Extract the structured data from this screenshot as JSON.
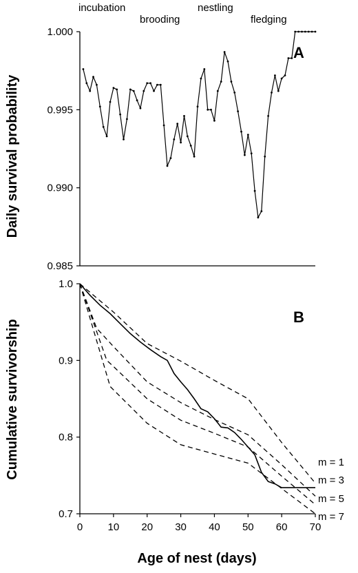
{
  "phases": [
    "incubation",
    "brooding",
    "nestling",
    "fledging"
  ],
  "x_label": "Age of nest (days)",
  "chart_data": [
    {
      "panel": "A",
      "type": "line",
      "ylabel": "Daily survival probability",
      "xlim": [
        0,
        70
      ],
      "ylim": [
        0.985,
        1.0
      ],
      "yticks": [
        "1.000",
        "0.995",
        "0.990",
        "0.985"
      ],
      "ytick_values": [
        1.0,
        0.995,
        0.99,
        0.985
      ],
      "markers": true,
      "series": [
        {
          "x": [
            1,
            2,
            3,
            4,
            5,
            6,
            7,
            8,
            9,
            10,
            11,
            12,
            13,
            14,
            15,
            16,
            17,
            18,
            19,
            20,
            21,
            22,
            23,
            24,
            25,
            26,
            27,
            28,
            29,
            30,
            31,
            32,
            33,
            34,
            35,
            36,
            37,
            38,
            39,
            40,
            41,
            42,
            43,
            44,
            45,
            46,
            47,
            48,
            49,
            50,
            51,
            52,
            53,
            54,
            55,
            56,
            57,
            58,
            59,
            60,
            61,
            62,
            63,
            64,
            65,
            66,
            67,
            68,
            69,
            70
          ],
          "y": [
            0.9976,
            0.9967,
            0.9962,
            0.9971,
            0.9966,
            0.9952,
            0.9939,
            0.9933,
            0.9955,
            0.9964,
            0.9963,
            0.9947,
            0.9931,
            0.9944,
            0.9963,
            0.9962,
            0.9956,
            0.9951,
            0.9962,
            0.9967,
            0.9967,
            0.9962,
            0.9966,
            0.9966,
            0.994,
            0.9914,
            0.9919,
            0.9931,
            0.9941,
            0.9929,
            0.9946,
            0.9933,
            0.9927,
            0.992,
            0.9952,
            0.997,
            0.9976,
            0.995,
            0.995,
            0.9943,
            0.9962,
            0.9968,
            0.9987,
            0.9981,
            0.9968,
            0.9961,
            0.9949,
            0.9936,
            0.9921,
            0.9934,
            0.9922,
            0.9898,
            0.9881,
            0.9885,
            0.992,
            0.9946,
            0.9961,
            0.9972,
            0.9962,
            0.997,
            0.9972,
            0.9983,
            0.9983,
            1.0,
            1.0,
            1.0,
            1.0,
            1.0,
            1.0,
            1.0
          ]
        }
      ]
    },
    {
      "panel": "B",
      "type": "line",
      "ylabel": "Cumulative survivorship",
      "xlim": [
        0,
        70
      ],
      "ylim": [
        0.7,
        1.0
      ],
      "xticks": [
        "0",
        "10",
        "20",
        "30",
        "40",
        "50",
        "60",
        "70"
      ],
      "xtick_values": [
        0,
        10,
        20,
        30,
        40,
        50,
        60,
        70
      ],
      "yticks": [
        "1.0",
        "0.9",
        "0.8",
        "0.7"
      ],
      "ytick_values": [
        1.0,
        0.9,
        0.8,
        0.7
      ],
      "series": [
        {
          "style": "solid",
          "x": [
            0,
            3,
            6,
            9,
            12,
            15,
            18,
            21,
            24,
            26,
            28,
            30,
            32,
            34,
            36,
            38,
            40,
            42,
            44,
            46,
            48,
            50,
            52,
            54,
            56,
            58,
            60,
            62,
            64,
            66,
            68,
            70
          ],
          "y": [
            1.0,
            0.985,
            0.972,
            0.961,
            0.948,
            0.935,
            0.924,
            0.914,
            0.905,
            0.9,
            0.883,
            0.872,
            0.862,
            0.85,
            0.837,
            0.833,
            0.824,
            0.813,
            0.812,
            0.806,
            0.797,
            0.787,
            0.777,
            0.754,
            0.742,
            0.739,
            0.734,
            0.734,
            0.734,
            0.734,
            0.734,
            0.734
          ]
        },
        {
          "name": "m = 1",
          "style": "dashed",
          "x": [
            0,
            10,
            20,
            30,
            40,
            50,
            60,
            70
          ],
          "y": [
            1.0,
            0.963,
            0.922,
            0.899,
            0.874,
            0.85,
            0.793,
            0.74
          ]
        },
        {
          "name": "m = 3",
          "style": "dashed",
          "x": [
            0,
            5,
            10,
            20,
            30,
            40,
            50,
            60,
            70
          ],
          "y": [
            1.0,
            0.942,
            0.918,
            0.872,
            0.845,
            0.823,
            0.803,
            0.764,
            0.723
          ]
        },
        {
          "name": "m = 5",
          "style": "dashed",
          "x": [
            0,
            8,
            10,
            20,
            30,
            40,
            50,
            60,
            70
          ],
          "y": [
            1.0,
            0.9,
            0.892,
            0.85,
            0.822,
            0.805,
            0.787,
            0.749,
            0.712
          ]
        },
        {
          "name": "m = 7",
          "style": "dashed",
          "x": [
            0,
            9,
            20,
            30,
            40,
            50,
            60,
            70
          ],
          "y": [
            1.0,
            0.866,
            0.818,
            0.79,
            0.778,
            0.766,
            0.733,
            0.7
          ]
        }
      ]
    }
  ]
}
